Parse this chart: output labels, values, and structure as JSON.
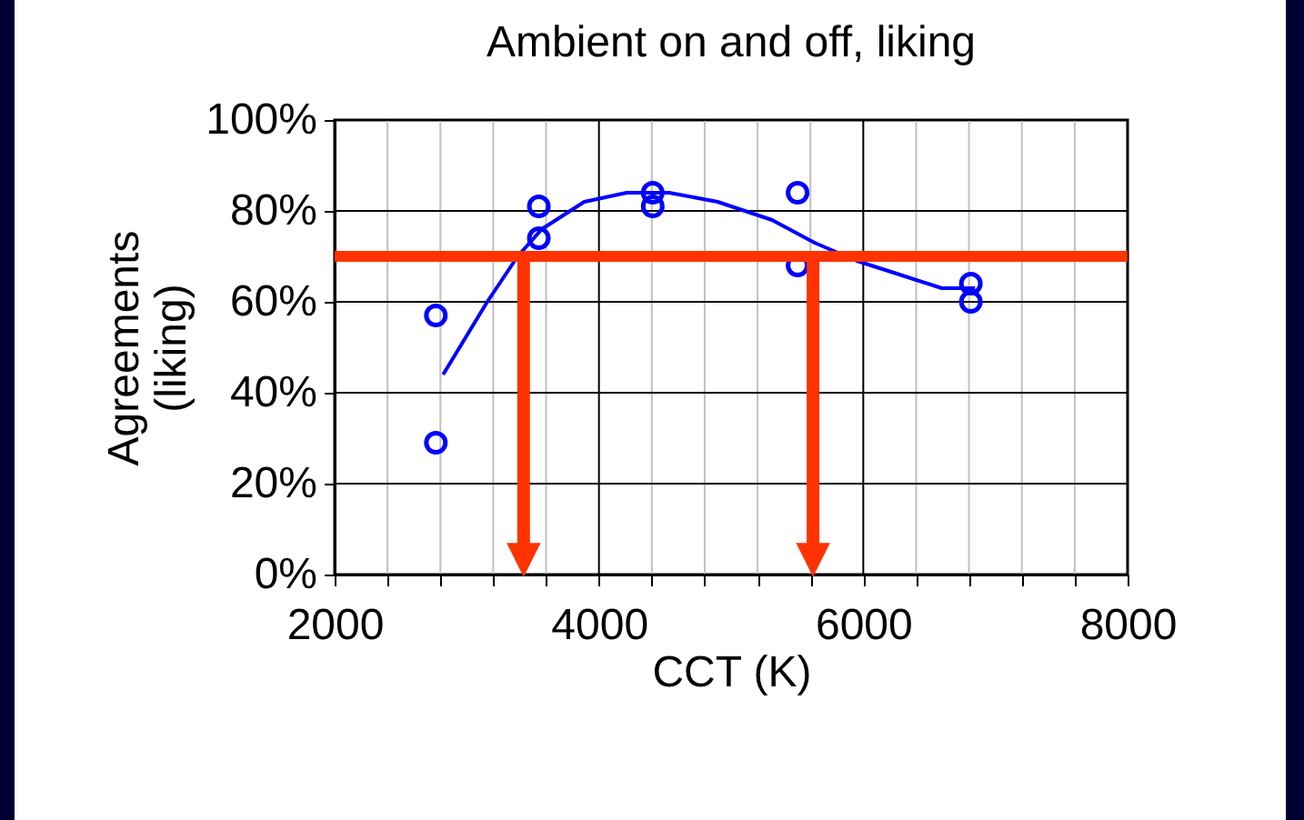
{
  "chart_data": {
    "type": "scatter",
    "title": "Ambient on and off, liking",
    "xlabel": "CCT (K)",
    "ylabel": "Agreements (liking)",
    "series": [
      {
        "color": "#0000ff",
        "marker": "circle",
        "x": [
          2766,
          2766,
          3545,
          3545,
          4407,
          4407,
          5503,
          5503,
          6814,
          6814
        ],
        "values": [
          57,
          29,
          81,
          74,
          84,
          81,
          84,
          68,
          64,
          60
        ]
      },
      {
        "type": "line",
        "color": "#0000ff",
        "marker": "none",
        "x": [
          2821,
          3155,
          3385,
          3568,
          3889,
          4210,
          4531,
          4898,
          5310,
          5631,
          5952,
          6274,
          6594,
          6846
        ],
        "values": [
          44,
          60,
          70,
          76,
          82,
          84,
          84,
          82,
          78,
          73,
          69,
          66,
          63,
          63
        ]
      }
    ],
    "ref_lines": [
      {
        "axis": "y",
        "value": 70,
        "color": "#ff3300"
      },
      {
        "axis": "x",
        "value": 3430,
        "color": "#ff3300"
      },
      {
        "axis": "x",
        "value": 5620,
        "color": "#ff3300"
      }
    ],
    "xlim": [
      2000,
      8000
    ],
    "xticks": [
      2000,
      {
        "value": 2400,
        "label": null
      },
      {
        "value": 2800,
        "label": null
      },
      {
        "value": 3200,
        "label": null
      },
      {
        "value": 3600,
        "label": null
      },
      4000,
      {
        "value": 4400,
        "label": null
      },
      {
        "value": 4800,
        "label": null
      },
      {
        "value": 5200,
        "label": null
      },
      {
        "value": 5600,
        "label": null
      },
      6000,
      {
        "value": 6400,
        "label": null
      },
      {
        "value": 6800,
        "label": null
      },
      {
        "value": 7200,
        "label": null
      },
      {
        "value": 7600,
        "label": null
      },
      8000
    ],
    "ylim": [
      0,
      100
    ],
    "yticks": [
      {
        "value": 0,
        "label": "0%"
      },
      {
        "value": 20,
        "label": "20%"
      },
      {
        "value": 40,
        "label": "40%"
      },
      {
        "value": 60,
        "label": "60%"
      },
      {
        "value": 80,
        "label": "80%"
      },
      {
        "value": 100,
        "label": "100%"
      }
    ],
    "grid": true
  }
}
